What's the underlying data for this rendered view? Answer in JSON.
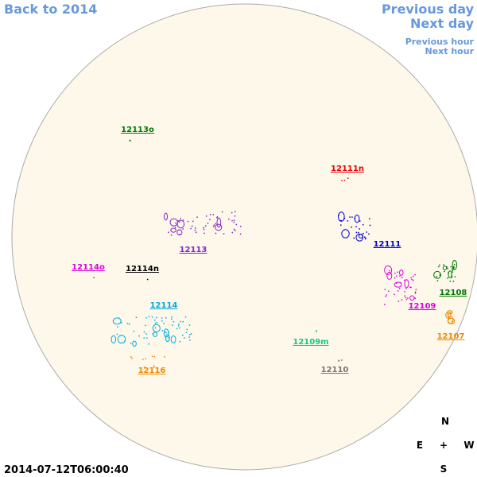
{
  "nav": {
    "back": "Back to 2014",
    "previous_day": "Previous day",
    "next_day": "Next day",
    "previous_hour": "Previous hour",
    "next_hour": "Next hour"
  },
  "regions": [
    {
      "label": "12113o",
      "color": "#007700"
    },
    {
      "label": "12111n",
      "color": "#ee0000"
    },
    {
      "label": "12113",
      "color": "#8822cc"
    },
    {
      "label": "12111",
      "color": "#0000cc"
    },
    {
      "label": "12114o",
      "color": "#dd00dd"
    },
    {
      "label": "12114n",
      "color": "#000000"
    },
    {
      "label": "12108",
      "color": "#007700"
    },
    {
      "label": "12109",
      "color": "#dd00dd"
    },
    {
      "label": "12114",
      "color": "#00aadd"
    },
    {
      "label": "12107",
      "color": "#ee8800"
    },
    {
      "label": "12109m",
      "color": "#11cc77"
    },
    {
      "label": "12110",
      "color": "#777777"
    },
    {
      "label": "12116",
      "color": "#ee8800"
    }
  ],
  "timestamp": "2014-07-12T06:00:40",
  "compass": {
    "north": "N",
    "east": "E",
    "center": "+",
    "west": "W",
    "south": "S"
  }
}
